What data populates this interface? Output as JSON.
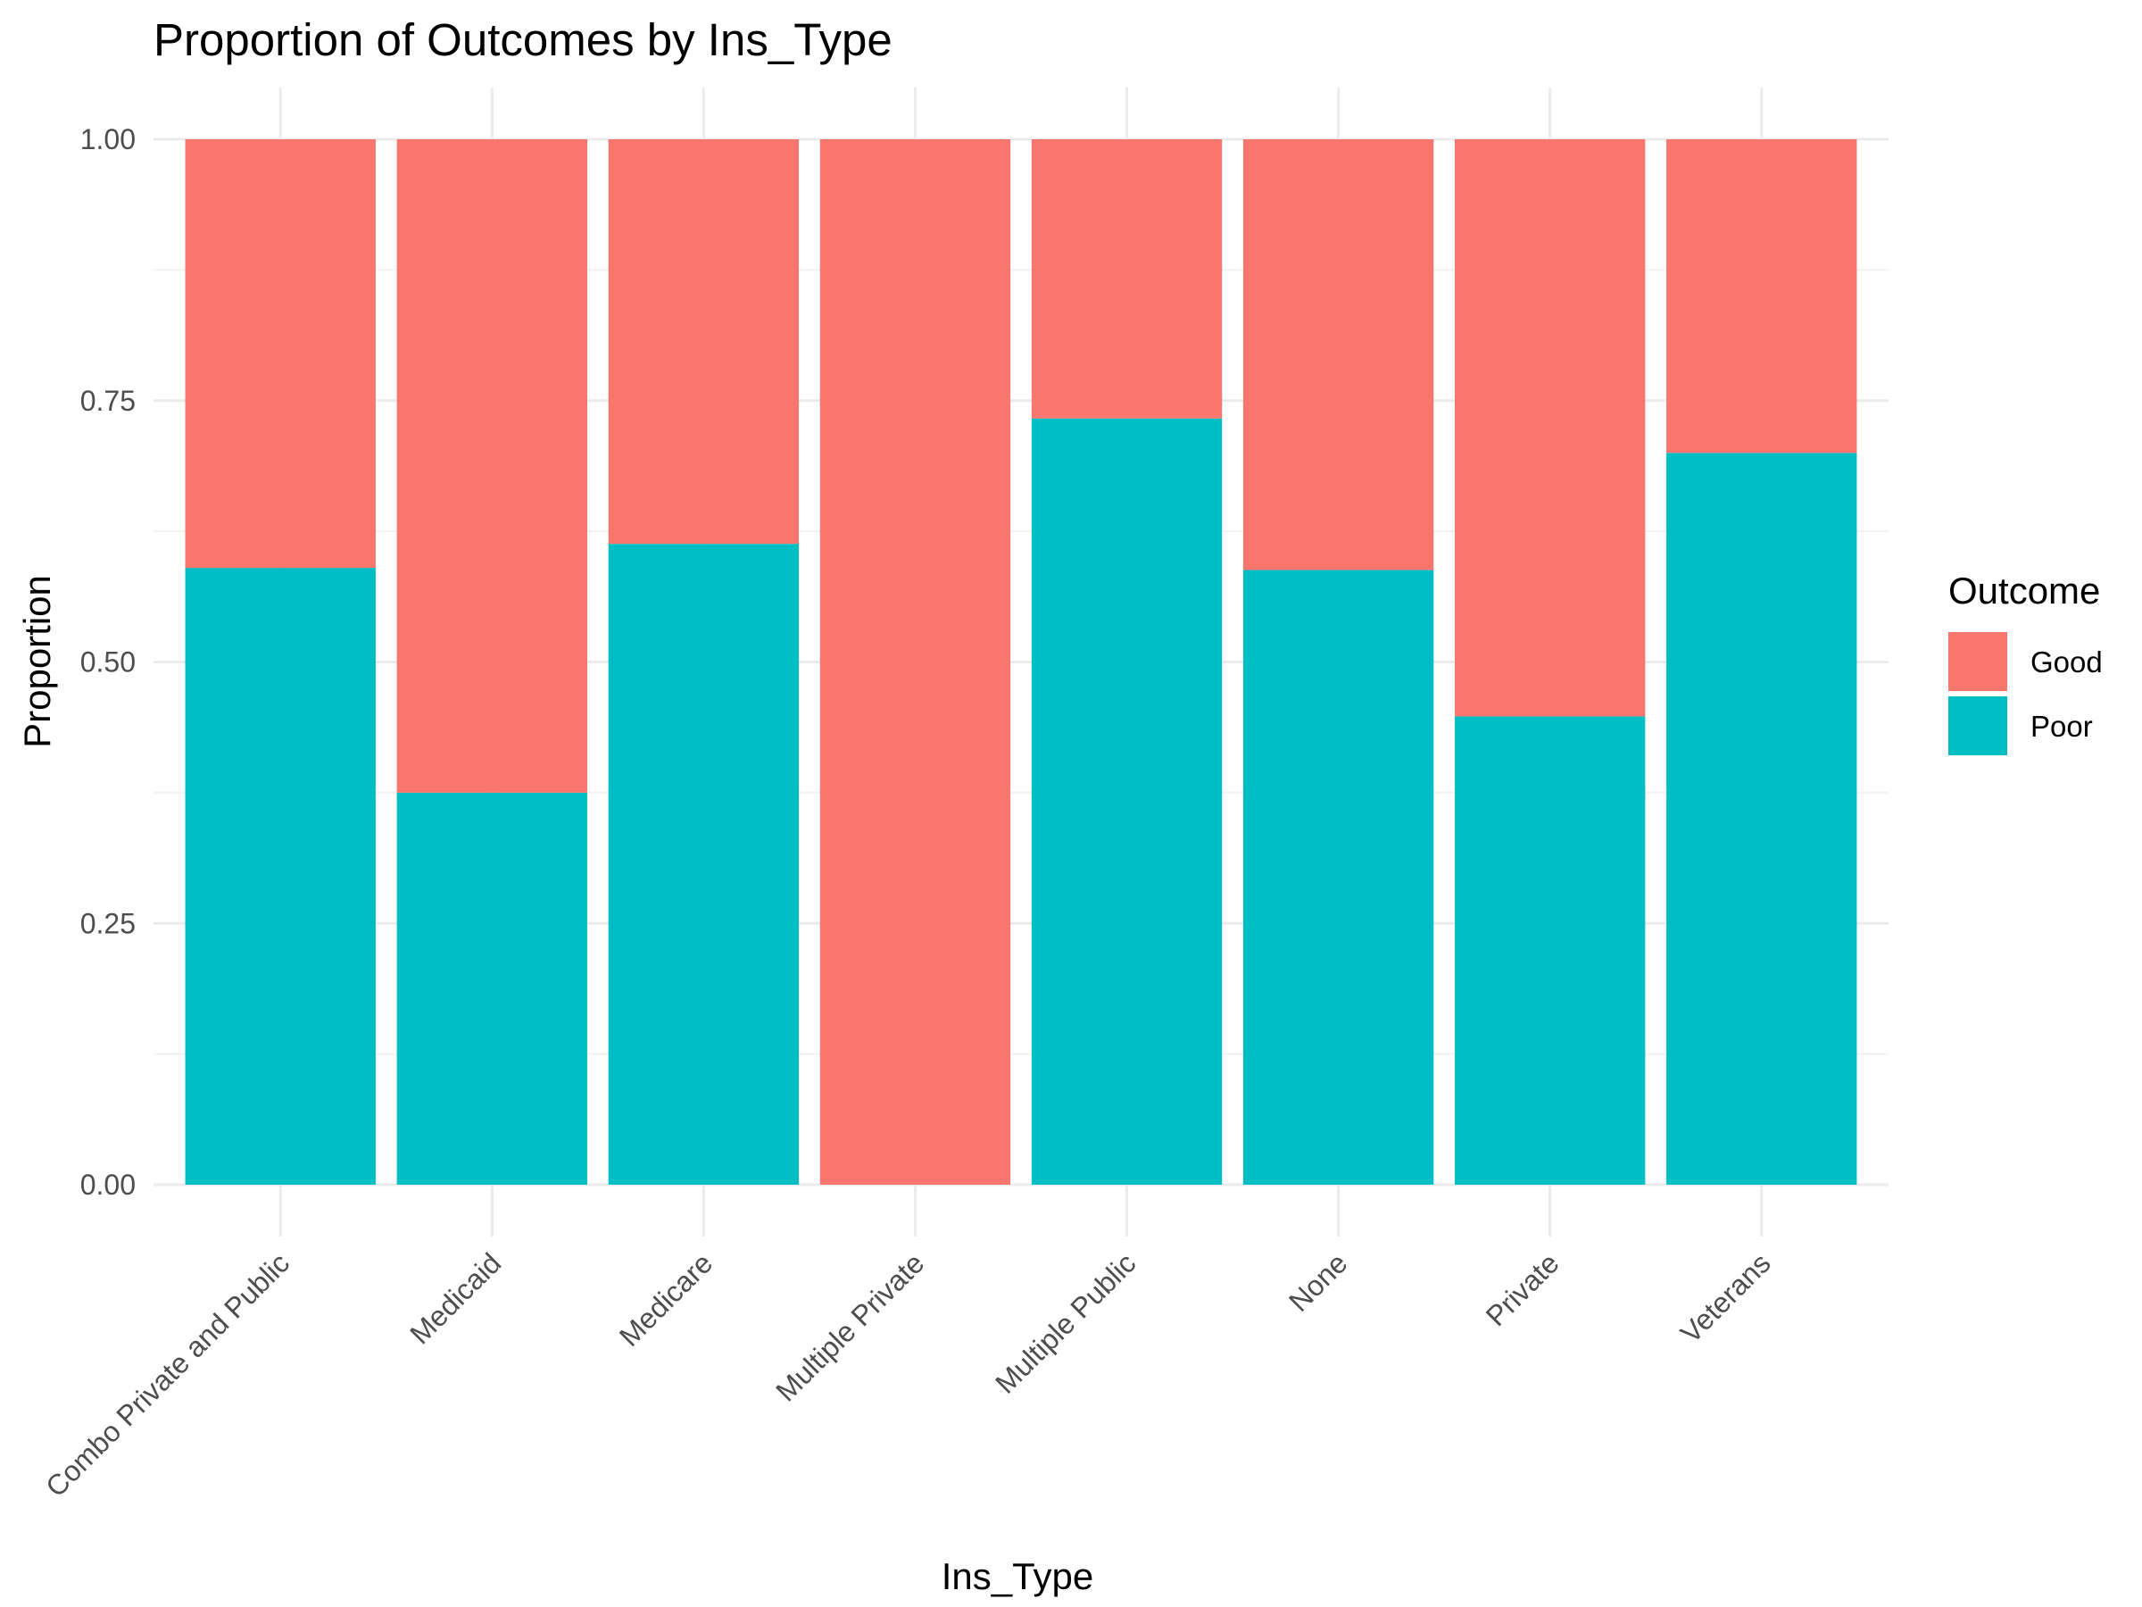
{
  "chart_data": {
    "type": "bar",
    "stacked": true,
    "title": "Proportion of Outcomes by Ins_Type",
    "xlabel": "Ins_Type",
    "ylabel": "Proportion",
    "ylim": [
      0,
      1
    ],
    "y_ticks": [
      "0.00",
      "0.25",
      "0.50",
      "0.75",
      "1.00"
    ],
    "grid": true,
    "legend": {
      "title": "Outcome",
      "placement": "right"
    },
    "categories": [
      "Combo Private and Public",
      "Medicaid",
      "Medicare",
      "Multiple Private",
      "Multiple Public",
      "None",
      "Private",
      "Veterans"
    ],
    "series": [
      {
        "name": "Poor",
        "color": "#00BFC4",
        "values": [
          0.59,
          0.375,
          0.613,
          0.0,
          0.733,
          0.588,
          0.448,
          0.7
        ]
      },
      {
        "name": "Good",
        "color": "#F8766D",
        "values": [
          0.41,
          0.625,
          0.387,
          1.0,
          0.267,
          0.412,
          0.552,
          0.3
        ]
      }
    ],
    "legend_order": [
      "Good",
      "Poor"
    ]
  }
}
